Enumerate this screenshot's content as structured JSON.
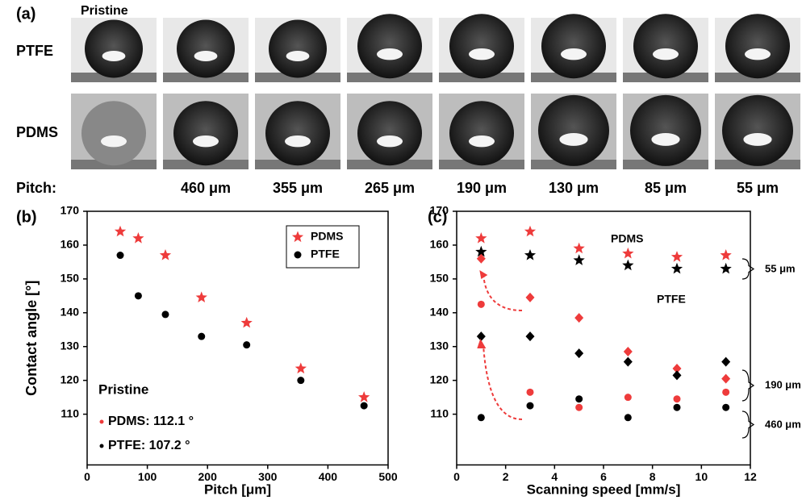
{
  "panel_a": {
    "label": "(a)",
    "pristine": "Pristine",
    "rows": [
      "PTFE",
      "PDMS"
    ],
    "pitch_label": "Pitch:",
    "pitches": [
      "460 μm",
      "355 μm",
      "265 μm",
      "190 μm",
      "130 μm",
      "85 μm",
      "55 μm"
    ]
  },
  "chart_data": [
    {
      "type": "scatter",
      "panel_label": "(b)",
      "x_label": "Pitch [μm]",
      "y_label": "Contact angle [°]",
      "xlim": [
        0,
        500
      ],
      "xticks": [
        0,
        100,
        200,
        300,
        400,
        500
      ],
      "ylim": [
        95,
        170
      ],
      "yticks": [
        110,
        120,
        130,
        140,
        150,
        160,
        170
      ],
      "legend": "upper right",
      "series": [
        {
          "name": "PDMS",
          "color": "#ee3b3b",
          "marker": "star",
          "x": [
            55,
            85,
            130,
            190,
            265,
            355,
            460
          ],
          "values": [
            164,
            162,
            157,
            144.5,
            137,
            123.5,
            115
          ]
        },
        {
          "name": "PTFE",
          "color": "#000000",
          "marker": "circle",
          "x": [
            55,
            85,
            130,
            190,
            265,
            355,
            460
          ],
          "values": [
            157,
            145,
            139.5,
            133,
            130.5,
            120,
            112.5
          ]
        }
      ],
      "annotations": [
        {
          "text": "Pristine",
          "color": "#000000"
        },
        {
          "text": "PDMS: 112.1 °",
          "color": "#ee3b3b"
        },
        {
          "text": "PTFE: 107.2 °",
          "color": "#000000"
        }
      ]
    },
    {
      "type": "scatter",
      "panel_label": "(c)",
      "x_label": "Scanning speed [mm/s]",
      "xlim": [
        0,
        12
      ],
      "xticks": [
        0,
        2,
        4,
        6,
        8,
        10,
        12
      ],
      "ylim": [
        95,
        170
      ],
      "yticks": [
        110,
        120,
        130,
        140,
        150,
        160,
        170
      ],
      "series": [
        {
          "color": "#ee3b3b",
          "marker": "star",
          "x": [
            1,
            3,
            5,
            7,
            9,
            11
          ],
          "values": [
            162,
            164,
            159,
            157.5,
            156.5,
            157
          ]
        },
        {
          "color": "#000000",
          "marker": "star",
          "x": [
            1,
            3,
            5,
            7,
            9,
            11
          ],
          "values": [
            158,
            157,
            155.5,
            154,
            153,
            153
          ]
        },
        {
          "color": "#ee3b3b",
          "marker": "diamond",
          "x": [
            1,
            3,
            5,
            7,
            9,
            11
          ],
          "values": [
            156,
            144.5,
            138.5,
            128.5,
            123.5,
            120.5
          ]
        },
        {
          "color": "#000000",
          "marker": "diamond",
          "x": [
            1,
            3,
            5,
            7,
            9,
            11
          ],
          "values": [
            133,
            133,
            128,
            125.5,
            121.5,
            125.5
          ]
        },
        {
          "color": "#ee3b3b",
          "marker": "circle",
          "x": [
            1,
            3,
            5,
            7,
            9,
            11
          ],
          "values": [
            142.5,
            116.5,
            112,
            115,
            114.5,
            116.5
          ]
        },
        {
          "color": "#000000",
          "marker": "circle",
          "x": [
            1,
            3,
            5,
            7,
            9,
            11
          ],
          "values": [
            109,
            112.5,
            114.5,
            109,
            112,
            112
          ]
        }
      ],
      "annotations": [
        {
          "text": "PDMS",
          "color": "#ee3b3b"
        },
        {
          "text": "PTFE",
          "color": "#000000"
        },
        {
          "text": "55 μm",
          "color": "#000000"
        },
        {
          "text": "190 μm",
          "color": "#000000"
        },
        {
          "text": "460 μm",
          "color": "#000000"
        }
      ]
    }
  ]
}
